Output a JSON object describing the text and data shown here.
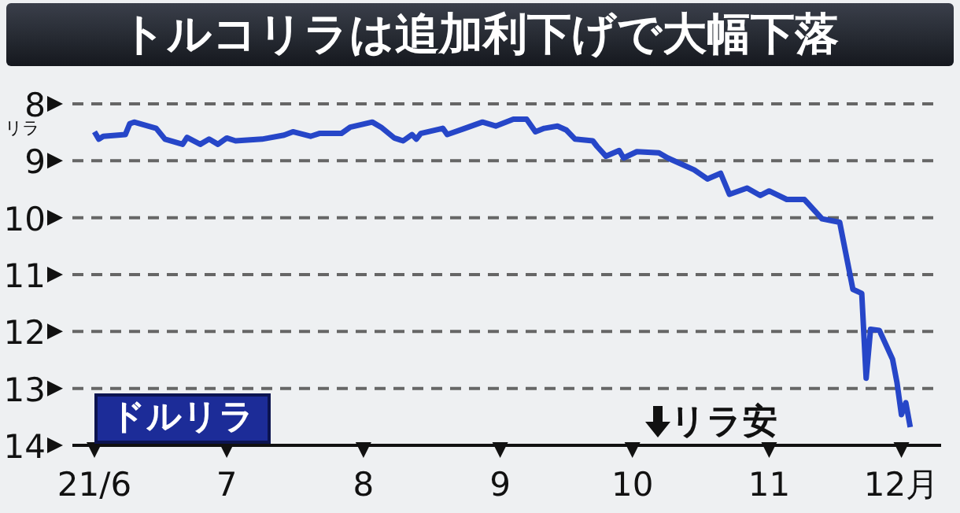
{
  "chart_data": {
    "type": "line",
    "title": "トルコリラは追加利下げで大幅下落",
    "ylabel": "リラ",
    "x": [
      "--06-01",
      "--06-02",
      "--06-03",
      "--06-08",
      "--06-09",
      "--06-10",
      "--06-15",
      "--06-17",
      "--06-21",
      "--06-22",
      "--06-25",
      "--06-27",
      "--06-29",
      "--07-01",
      "--07-03",
      "--07-09",
      "--07-14",
      "--07-16",
      "--07-20",
      "--07-22",
      "--07-27",
      "--07-29",
      "--08-03",
      "--08-05",
      "--08-08",
      "--08-10",
      "--08-12",
      "--08-13",
      "--08-14",
      "--08-19",
      "--08-20",
      "--08-24",
      "--08-28",
      "--08-31",
      "--09-04",
      "--09-07",
      "--09-09",
      "--09-11",
      "--09-14",
      "--09-16",
      "--09-18",
      "--09-22",
      "--09-23",
      "--09-25",
      "--09-28",
      "--09-29",
      "--10-02",
      "--10-07",
      "--10-09",
      "--10-15",
      "--10-18",
      "--10-21",
      "--10-23",
      "--10-27",
      "--10-30",
      "--11-01",
      "--11-05",
      "--11-09",
      "--11-13",
      "--11-17",
      "--11-20",
      "--11-22",
      "--11-23",
      "--11-24",
      "--11-26",
      "--11-29",
      "--11-30",
      "--12-01",
      "--12-02",
      "--12-03"
    ],
    "series": [
      {
        "name": "ドルリラ",
        "color": "#2646c8",
        "values": [
          8.49,
          8.62,
          8.57,
          8.54,
          8.35,
          8.32,
          8.43,
          8.62,
          8.71,
          8.59,
          8.71,
          8.62,
          8.71,
          8.6,
          8.65,
          8.62,
          8.55,
          8.49,
          8.57,
          8.52,
          8.52,
          8.41,
          8.32,
          8.41,
          8.6,
          8.65,
          8.54,
          8.62,
          8.52,
          8.43,
          8.54,
          8.43,
          8.32,
          8.39,
          8.27,
          8.27,
          8.49,
          8.43,
          8.39,
          8.46,
          8.62,
          8.65,
          8.75,
          8.92,
          8.82,
          8.95,
          8.84,
          8.86,
          8.95,
          9.16,
          9.32,
          9.22,
          9.59,
          9.48,
          9.61,
          9.53,
          9.68,
          9.68,
          10.02,
          10.08,
          11.26,
          11.33,
          12.82,
          11.96,
          11.98,
          12.49,
          12.9,
          13.46,
          13.25,
          13.68
        ]
      }
    ],
    "xlim": [
      "--05-27",
      "--12-10"
    ],
    "xticks": [
      {
        "value": "--06-01",
        "label": "21/6"
      },
      {
        "value": "--07-01",
        "label": "7"
      },
      {
        "value": "--08-01",
        "label": "8"
      },
      {
        "value": "--09-01",
        "label": "9"
      },
      {
        "value": "--10-01",
        "label": "10"
      },
      {
        "value": "--11-01",
        "label": "11"
      },
      {
        "value": "--12-01",
        "label": "12月"
      }
    ],
    "ylim": [
      14,
      8
    ],
    "yticks": [
      8,
      9,
      10,
      11,
      12,
      13,
      14
    ],
    "grid": "y",
    "annotations": [
      "リラ安"
    ]
  }
}
